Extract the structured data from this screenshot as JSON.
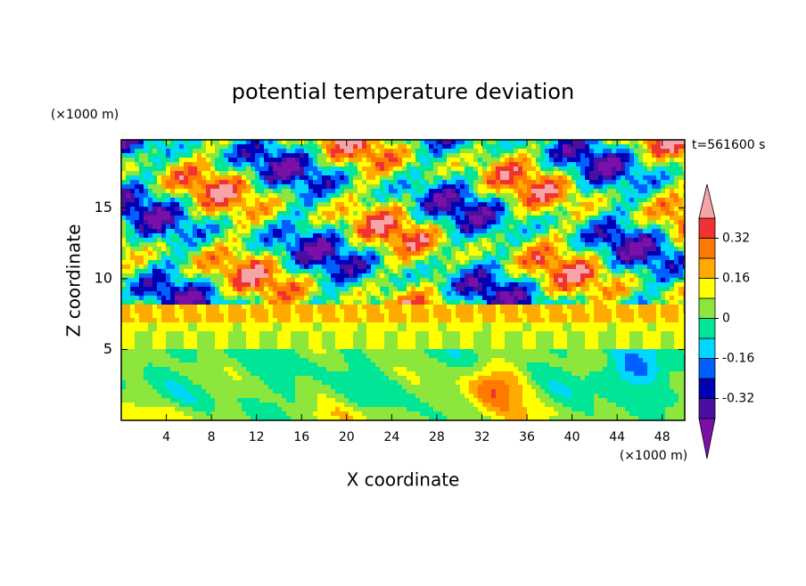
{
  "chart_data": {
    "type": "contour",
    "title": "potential temperature deviation",
    "y_unit": "(×1000 m)",
    "x_unit": "(×1000 m)",
    "annotation": "t=561600 s",
    "xlabel": "X coordinate",
    "ylabel": "Z coordinate",
    "xlim": [
      0,
      50
    ],
    "ylim": [
      0,
      19.8
    ],
    "xticks": [
      4,
      8,
      12,
      16,
      20,
      24,
      28,
      32,
      36,
      40,
      44,
      48
    ],
    "yticks": [
      5,
      10,
      15
    ],
    "colorbar": {
      "levels": [
        -0.4,
        -0.32,
        -0.24,
        -0.16,
        -0.08,
        0,
        0.08,
        0.16,
        0.24,
        0.32,
        0.4
      ],
      "colors": [
        "#7b0fa8",
        "#4b0fa0",
        "#0000b4",
        "#0060ff",
        "#00d7ff",
        "#00e696",
        "#8ce63c",
        "#ffff00",
        "#ffaa00",
        "#ff7800",
        "#f03232",
        "#f5a5a5"
      ],
      "ticks": [
        0.32,
        0.16,
        0,
        -0.16,
        -0.32
      ]
    }
  }
}
